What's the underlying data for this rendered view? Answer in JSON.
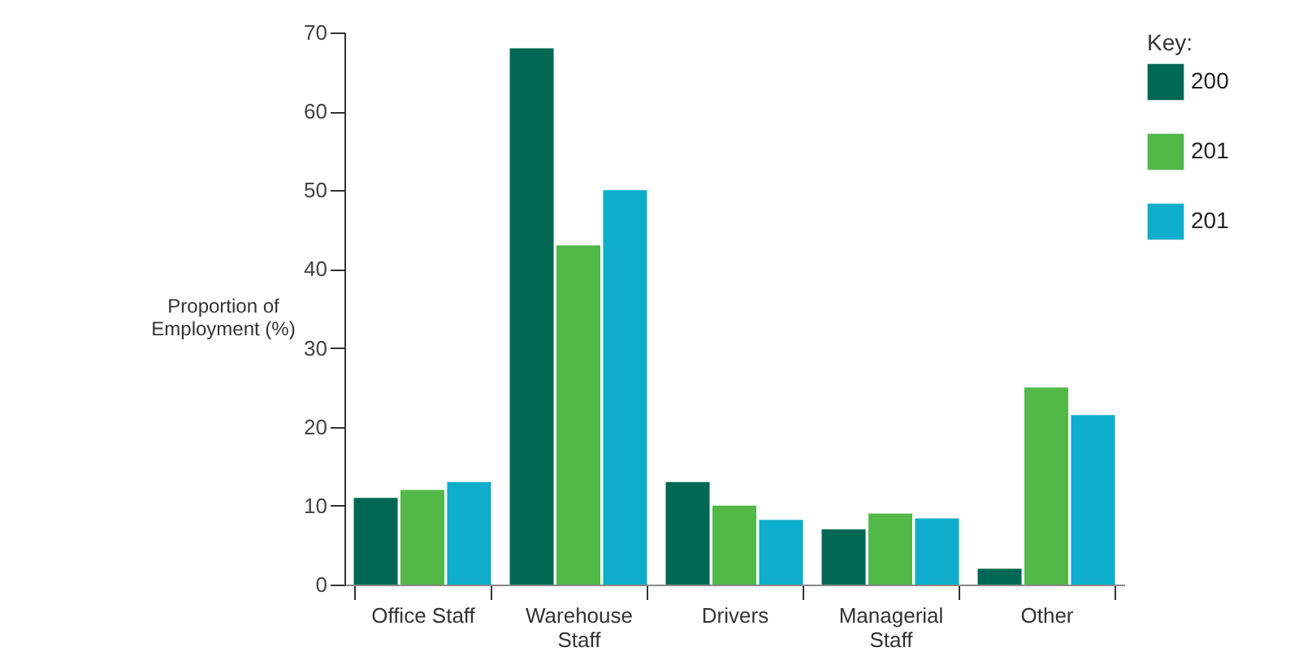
{
  "chart_data": {
    "type": "bar",
    "ylabel": "Proportion of Employment (%)",
    "legend_title": "Key:",
    "categories": [
      "Office Staff",
      "Warehouse Staff",
      "Drivers",
      "Managerial Staff",
      "Other"
    ],
    "series": [
      {
        "name": "200",
        "color": "#006853",
        "values": [
          11,
          68,
          13,
          7,
          2
        ]
      },
      {
        "name": "201",
        "color": "#52b848",
        "values": [
          12,
          43,
          10,
          9,
          25
        ]
      },
      {
        "name": "201",
        "color": "#0eadcb",
        "values": [
          13,
          50,
          8.2,
          8.4,
          21.5
        ]
      }
    ],
    "ylim": [
      0,
      70
    ],
    "yticks": [
      0,
      10,
      20,
      30,
      40,
      50,
      60,
      70
    ],
    "grid": false,
    "legend": "top right"
  }
}
